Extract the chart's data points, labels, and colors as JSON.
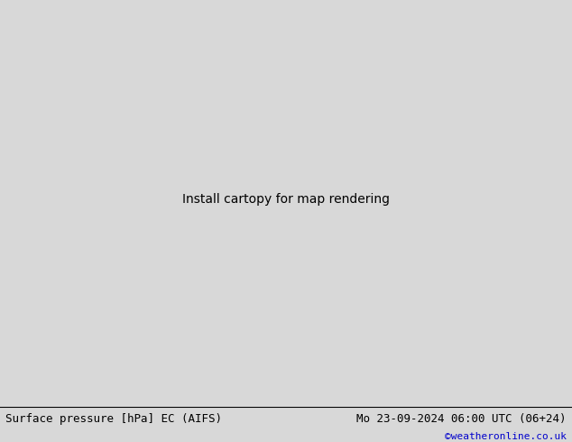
{
  "title_left": "Surface pressure [hPa] EC (AIFS)",
  "title_right": "Mo 23-09-2024 06:00 UTC (06+24)",
  "credit": "©weatheronline.co.uk",
  "bg_color": "#d8d8d8",
  "land_color": "#c8f0a0",
  "sea_color": "#d8d8d8",
  "fig_width": 6.34,
  "fig_height": 4.9,
  "dpi": 100,
  "bottom_bar_color": "#ffffff",
  "title_fontsize": 9,
  "credit_fontsize": 8,
  "credit_color": "#0000cc",
  "lon_min": 18.0,
  "lon_max": 32.0,
  "lat_min": 33.5,
  "lat_max": 43.0
}
